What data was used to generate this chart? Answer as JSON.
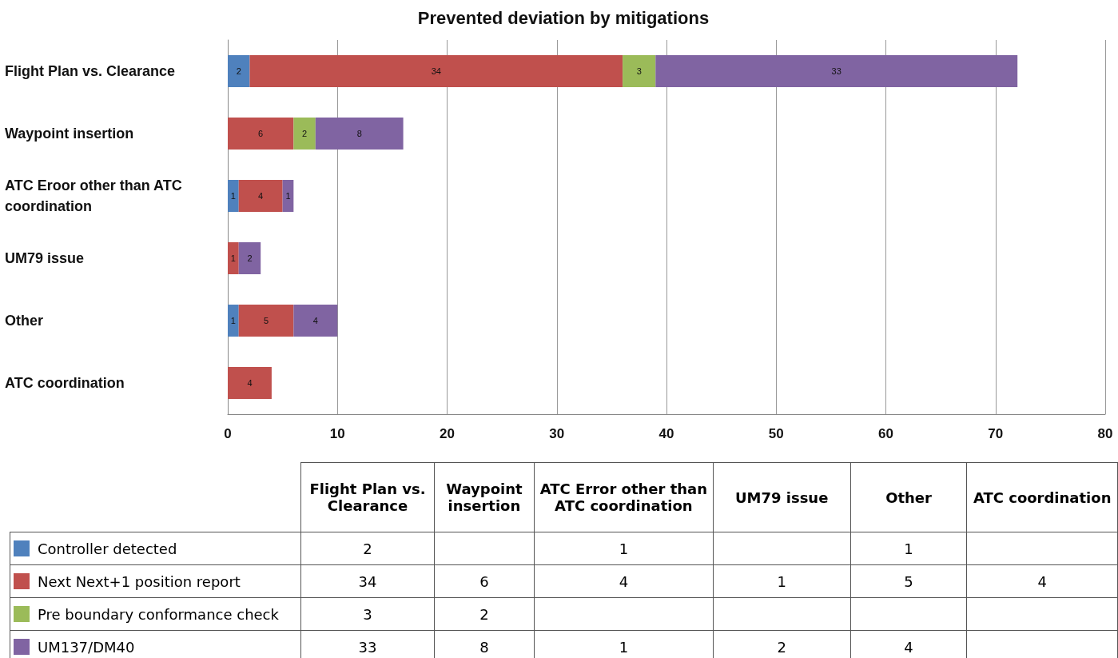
{
  "chart_data": {
    "type": "bar",
    "title": "Prevented deviation by mitigations",
    "orientation": "horizontal",
    "stacked": true,
    "categories": [
      "Flight Plan vs. Clearance",
      "Waypoint insertion",
      "ATC Eroor other than ATC coordination",
      "UM79 issue",
      "Other",
      "ATC coordination"
    ],
    "series": [
      {
        "name": "Controller detected",
        "color": "#4f81bd",
        "values": [
          2,
          null,
          1,
          null,
          1,
          null
        ],
        "value_labels": [
          "2",
          null,
          "1",
          null,
          "1",
          null
        ]
      },
      {
        "name": "Next Next+1 position report",
        "color": "#c0504d",
        "values": [
          34,
          6,
          4,
          1,
          5,
          4
        ],
        "value_labels": [
          "34",
          "6",
          "4",
          "1",
          "5",
          "4"
        ]
      },
      {
        "name": "Pre boundary conformance check",
        "color": "#9bbb59",
        "values": [
          3,
          2,
          null,
          null,
          null,
          null
        ],
        "value_labels": [
          "3",
          "2",
          null,
          null,
          null,
          null
        ]
      },
      {
        "name": "UM137/DM40",
        "color": "#8064a2",
        "values": [
          33,
          8,
          1,
          2,
          4,
          null
        ],
        "value_labels": [
          "33",
          "8",
          "1",
          "2",
          "4",
          null
        ]
      }
    ],
    "xlim": [
      0,
      80
    ],
    "xticks": [
      0,
      10,
      20,
      30,
      40,
      50,
      60,
      70,
      80
    ],
    "grid": "x",
    "legend": "bottom",
    "data_labels": true,
    "annotations": [
      "Flight Plan vs. Clearance",
      "Waypoint insertion",
      "ATC Error other than ATC coordination",
      "UM79 issue",
      "Other",
      "ATC coordination"
    ]
  }
}
